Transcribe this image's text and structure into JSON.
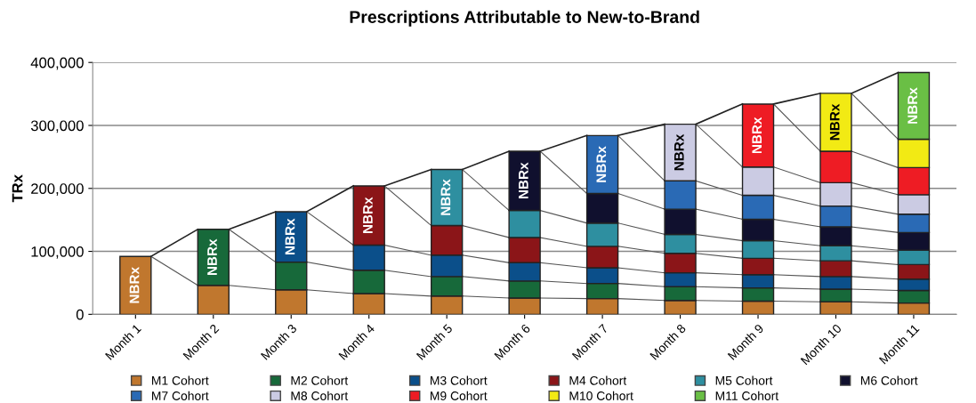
{
  "chart_data": {
    "type": "bar",
    "stacked": true,
    "title": "Prescriptions Attributable to New-to-Brand",
    "ylabel": "TRx",
    "categories": [
      "Month 1",
      "Month 2",
      "Month 3",
      "Month 4",
      "Month 5",
      "Month 6",
      "Month 7",
      "Month 8",
      "Month 9",
      "Month 10",
      "Month 11"
    ],
    "series": [
      {
        "name": "M1 Cohort",
        "color": "#c0772e",
        "values": [
          92000,
          46000,
          39000,
          33000,
          29000,
          26000,
          25000,
          22000,
          21000,
          20000,
          18000
        ],
        "value_labels": [
          "NBRx",
          null,
          null,
          null,
          null,
          null,
          null,
          null,
          null,
          null,
          null
        ]
      },
      {
        "name": "M2 Cohort",
        "color": "#17693a",
        "values": [
          null,
          89000,
          44000,
          37000,
          31000,
          27000,
          24000,
          22000,
          21000,
          20000,
          20000
        ],
        "value_labels": [
          null,
          "NBRx",
          null,
          null,
          null,
          null,
          null,
          null,
          null,
          null,
          null
        ]
      },
      {
        "name": "M3 Cohort",
        "color": "#0b4f8a",
        "values": [
          null,
          null,
          80000,
          40000,
          34000,
          29000,
          25000,
          22000,
          21000,
          20000,
          18000
        ],
        "value_labels": [
          null,
          null,
          "NBRx",
          null,
          null,
          null,
          null,
          null,
          null,
          null,
          null
        ]
      },
      {
        "name": "M4 Cohort",
        "color": "#8b1518",
        "values": [
          null,
          null,
          null,
          94000,
          47000,
          40000,
          34000,
          31000,
          26000,
          25000,
          23000
        ],
        "value_labels": [
          null,
          null,
          null,
          "NBRx",
          null,
          null,
          null,
          null,
          null,
          null,
          null
        ]
      },
      {
        "name": "M5 Cohort",
        "color": "#2e8fa0",
        "values": [
          null,
          null,
          null,
          null,
          89000,
          43000,
          37000,
          30000,
          28000,
          24000,
          23000
        ],
        "value_labels": [
          null,
          null,
          null,
          null,
          "NBRx",
          null,
          null,
          null,
          null,
          null,
          null
        ]
      },
      {
        "name": "M6 Cohort",
        "color": "#10102e",
        "values": [
          null,
          null,
          null,
          null,
          null,
          94000,
          47000,
          40000,
          34000,
          30000,
          28000
        ],
        "value_labels": [
          null,
          null,
          null,
          null,
          null,
          "NBRx",
          null,
          null,
          null,
          null,
          null
        ]
      },
      {
        "name": "M7 Cohort",
        "color": "#2a6ab5",
        "values": [
          null,
          null,
          null,
          null,
          null,
          null,
          92000,
          45000,
          38000,
          33000,
          29000
        ],
        "value_labels": [
          null,
          null,
          null,
          null,
          null,
          null,
          "NBRx",
          null,
          null,
          null,
          null
        ]
      },
      {
        "name": "M8 Cohort",
        "color": "#cbcbe3",
        "values": [
          null,
          null,
          null,
          null,
          null,
          null,
          null,
          90000,
          45000,
          37000,
          31000
        ],
        "value_labels": [
          null,
          null,
          null,
          null,
          null,
          null,
          null,
          "NBRx",
          null,
          null,
          null
        ]
      },
      {
        "name": "M9 Cohort",
        "color": "#ee1c24",
        "values": [
          null,
          null,
          null,
          null,
          null,
          null,
          null,
          null,
          100000,
          50000,
          43000
        ],
        "value_labels": [
          null,
          null,
          null,
          null,
          null,
          null,
          null,
          null,
          "NBRx",
          null,
          null
        ]
      },
      {
        "name": "M10 Cohort",
        "color": "#f2ea14",
        "values": [
          null,
          null,
          null,
          null,
          null,
          null,
          null,
          null,
          null,
          92000,
          45000
        ],
        "value_labels": [
          null,
          null,
          null,
          null,
          null,
          null,
          null,
          null,
          null,
          "NBRx",
          null
        ]
      },
      {
        "name": "M11 Cohort",
        "color": "#6abf45",
        "values": [
          null,
          null,
          null,
          null,
          null,
          null,
          null,
          null,
          null,
          null,
          106000
        ],
        "value_labels": [
          null,
          null,
          null,
          null,
          null,
          null,
          null,
          null,
          null,
          null,
          "NBRx"
        ]
      }
    ],
    "ylim": [
      0,
      400000
    ],
    "yticks": [
      0,
      {
        "value": 100000,
        "label": "100,000"
      },
      {
        "value": 200000,
        "label": "200,000"
      },
      {
        "value": 300000,
        "label": "300,000"
      },
      {
        "value": 400000,
        "label": "400,000"
      }
    ],
    "grid": "y",
    "legend": "bottom"
  }
}
